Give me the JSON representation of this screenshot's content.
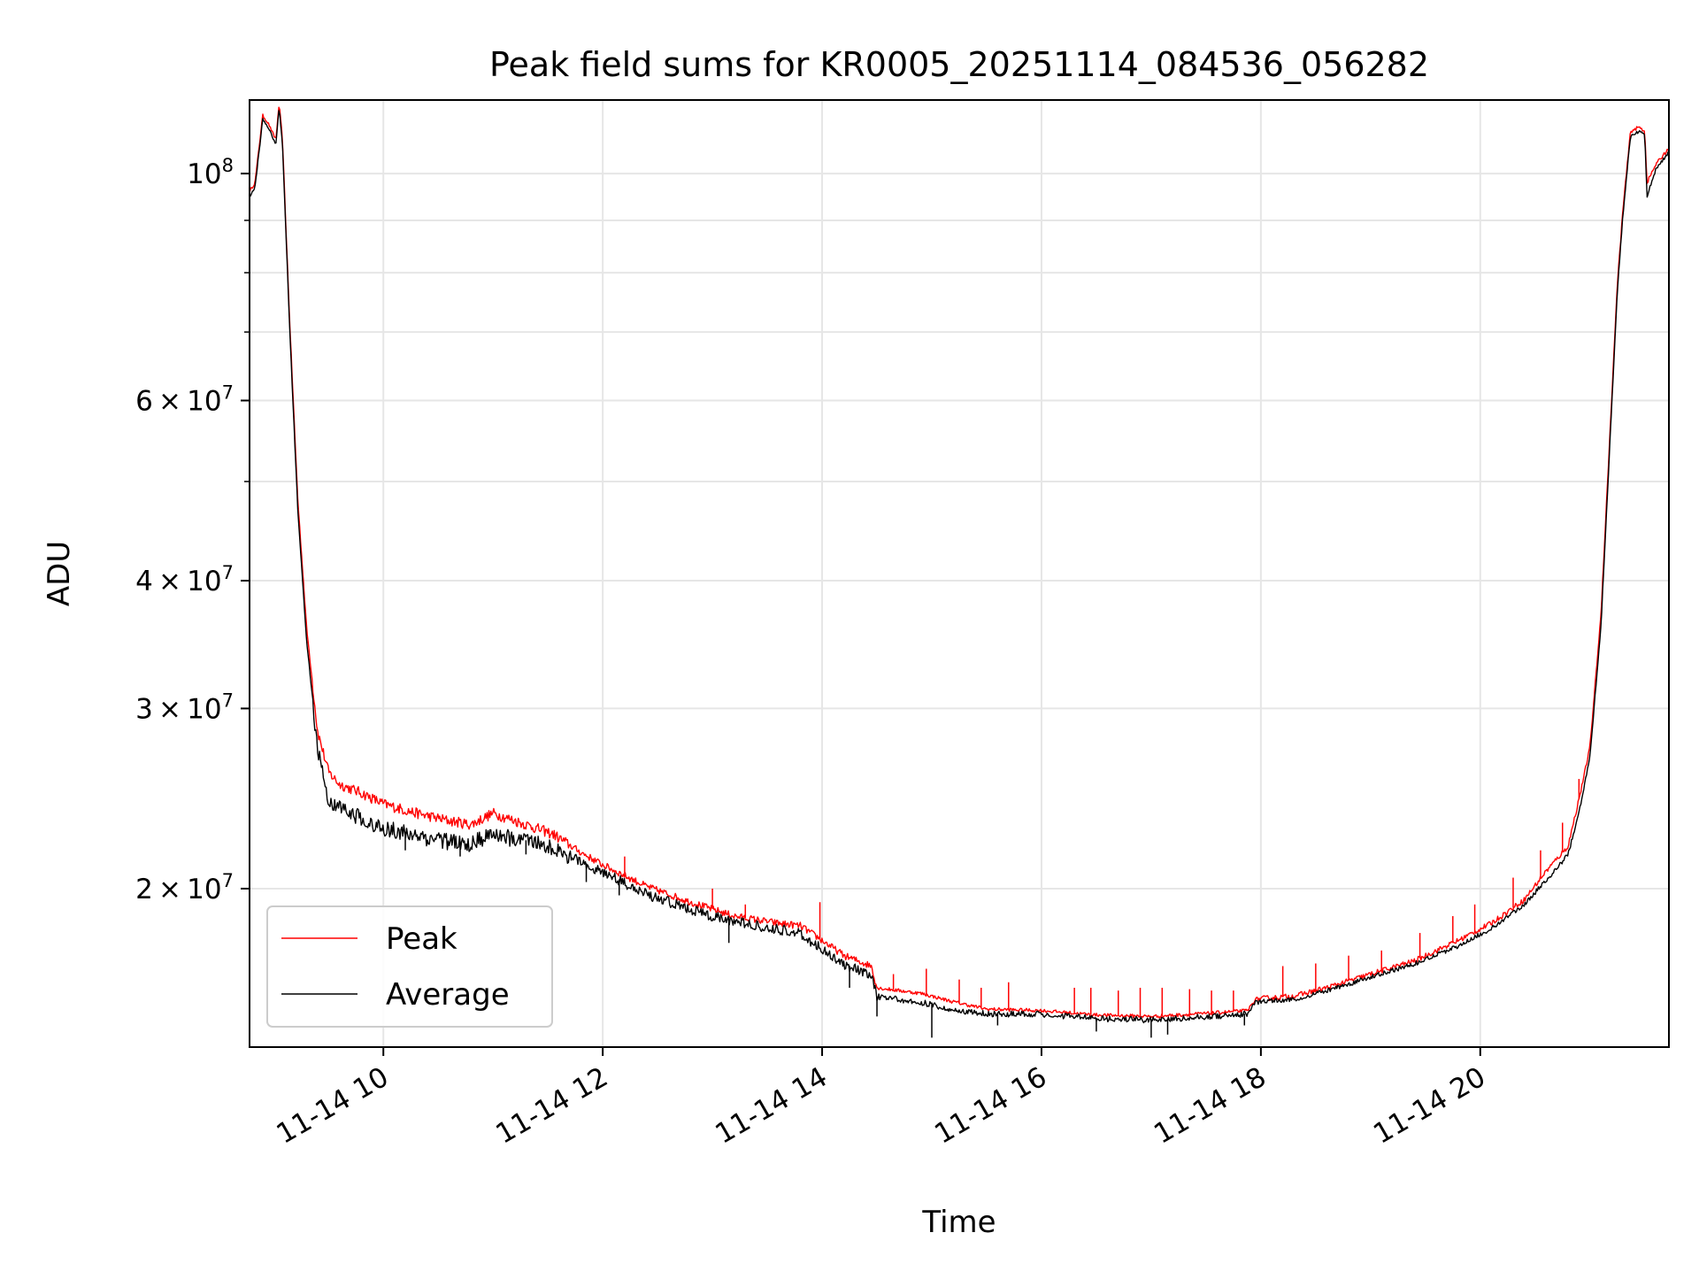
{
  "colors": {
    "peak": "#ff0000",
    "average": "#000000",
    "grid": "#e6e6e6",
    "axes": "#000000",
    "background": "#ffffff"
  },
  "chart_data": {
    "type": "line",
    "title": "Peak field sums for KR0005_20251114_084536_056282",
    "xlabel": "Time",
    "ylabel": "ADU",
    "yscale": "log",
    "grid": true,
    "legend_position": "bottom-left",
    "x_unit": "hours on 2025-11-14",
    "xlim": [
      8.78,
      21.72
    ],
    "ylim": [
      14000000,
      118000000
    ],
    "x_ticks": [
      {
        "value": 10,
        "label": "11-14 10"
      },
      {
        "value": 12,
        "label": "11-14 12"
      },
      {
        "value": 14,
        "label": "11-14 14"
      },
      {
        "value": 16,
        "label": "11-14 16"
      },
      {
        "value": 18,
        "label": "11-14 18"
      },
      {
        "value": 20,
        "label": "11-14 20"
      }
    ],
    "y_major_ticks": [
      {
        "value": 20000000,
        "mant": "2",
        "exp": "7"
      },
      {
        "value": 30000000,
        "mant": "3",
        "exp": "7"
      },
      {
        "value": 40000000,
        "mant": "4",
        "exp": "7"
      },
      {
        "value": 60000000,
        "mant": "6",
        "exp": "7"
      },
      {
        "value": 100000000,
        "mant": "",
        "exp": "8"
      }
    ],
    "y_minor_ticks": [
      50000000,
      70000000,
      80000000,
      90000000
    ],
    "series": [
      {
        "name": "Peak",
        "color": "#ff0000",
        "points": [
          [
            8.78,
            96000000
          ],
          [
            8.83,
            98000000
          ],
          [
            8.9,
            114000000
          ],
          [
            8.95,
            112000000
          ],
          [
            9.0,
            109000000
          ],
          [
            9.02,
            108000000
          ],
          [
            9.05,
            117000000
          ],
          [
            9.08,
            108000000
          ],
          [
            9.15,
            70000000
          ],
          [
            9.22,
            48000000
          ],
          [
            9.3,
            36000000
          ],
          [
            9.4,
            28500000
          ],
          [
            9.5,
            26000000
          ],
          [
            9.6,
            25300000
          ],
          [
            9.8,
            24800000
          ],
          [
            10.0,
            24200000
          ],
          [
            10.3,
            23700000
          ],
          [
            10.6,
            23300000
          ],
          [
            10.8,
            23100000
          ],
          [
            11.0,
            23700000
          ],
          [
            11.3,
            23100000
          ],
          [
            11.55,
            22600000
          ],
          [
            11.8,
            21700000
          ],
          [
            12.0,
            21100000
          ],
          [
            12.4,
            20100000
          ],
          [
            12.8,
            19400000
          ],
          [
            13.2,
            18800000
          ],
          [
            13.6,
            18500000
          ],
          [
            13.8,
            18400000
          ],
          [
            14.0,
            17800000
          ],
          [
            14.2,
            17200000
          ],
          [
            14.45,
            16800000
          ],
          [
            14.5,
            16000000
          ],
          [
            14.9,
            15800000
          ],
          [
            15.2,
            15500000
          ],
          [
            15.5,
            15250000
          ],
          [
            16.0,
            15200000
          ],
          [
            16.5,
            15050000
          ],
          [
            17.0,
            15000000
          ],
          [
            17.5,
            15100000
          ],
          [
            17.88,
            15200000
          ],
          [
            17.95,
            15600000
          ],
          [
            18.3,
            15700000
          ],
          [
            18.6,
            16000000
          ],
          [
            19.0,
            16500000
          ],
          [
            19.4,
            17000000
          ],
          [
            19.8,
            17800000
          ],
          [
            20.1,
            18500000
          ],
          [
            20.4,
            19500000
          ],
          [
            20.6,
            20800000
          ],
          [
            20.8,
            22000000
          ],
          [
            20.92,
            25000000
          ],
          [
            21.0,
            27500000
          ],
          [
            21.1,
            37000000
          ],
          [
            21.18,
            55000000
          ],
          [
            21.25,
            78000000
          ],
          [
            21.3,
            92000000
          ],
          [
            21.37,
            110000000
          ],
          [
            21.45,
            111000000
          ],
          [
            21.5,
            110000000
          ],
          [
            21.52,
            98000000
          ],
          [
            21.6,
            102000000
          ],
          [
            21.72,
            106000000
          ]
        ],
        "spikes": [
          [
            12.2,
            21500000
          ],
          [
            13.0,
            20000000
          ],
          [
            13.3,
            19300000
          ],
          [
            13.98,
            19400000
          ],
          [
            14.42,
            16800000
          ],
          [
            14.65,
            16500000
          ],
          [
            14.95,
            16700000
          ],
          [
            15.25,
            16300000
          ],
          [
            15.45,
            16000000
          ],
          [
            15.7,
            16200000
          ],
          [
            16.3,
            16000000
          ],
          [
            16.45,
            16000000
          ],
          [
            16.7,
            15900000
          ],
          [
            16.9,
            16000000
          ],
          [
            17.1,
            16000000
          ],
          [
            17.35,
            15950000
          ],
          [
            17.55,
            15900000
          ],
          [
            17.75,
            15900000
          ],
          [
            18.2,
            16800000
          ],
          [
            18.5,
            16900000
          ],
          [
            18.8,
            17200000
          ],
          [
            19.1,
            17400000
          ],
          [
            19.45,
            18100000
          ],
          [
            19.75,
            18800000
          ],
          [
            19.95,
            19300000
          ],
          [
            20.3,
            20500000
          ],
          [
            20.55,
            21800000
          ],
          [
            20.75,
            23200000
          ],
          [
            20.9,
            25600000
          ]
        ]
      },
      {
        "name": "Average",
        "color": "#000000",
        "points": [
          [
            8.78,
            95000000
          ],
          [
            8.83,
            97000000
          ],
          [
            8.9,
            113000000
          ],
          [
            8.95,
            111000000
          ],
          [
            9.0,
            108000000
          ],
          [
            9.02,
            107000000
          ],
          [
            9.05,
            116000000
          ],
          [
            9.08,
            107000000
          ],
          [
            9.15,
            69000000
          ],
          [
            9.22,
            47000000
          ],
          [
            9.3,
            35000000
          ],
          [
            9.4,
            27500000
          ],
          [
            9.5,
            24500000
          ],
          [
            9.6,
            24000000
          ],
          [
            9.8,
            23500000
          ],
          [
            10.0,
            23000000
          ],
          [
            10.3,
            22600000
          ],
          [
            10.6,
            22300000
          ],
          [
            10.8,
            22200000
          ],
          [
            11.0,
            22700000
          ],
          [
            11.3,
            22300000
          ],
          [
            11.55,
            22000000
          ],
          [
            11.8,
            21300000
          ],
          [
            12.0,
            20800000
          ],
          [
            12.4,
            19800000
          ],
          [
            12.8,
            19100000
          ],
          [
            13.2,
            18600000
          ],
          [
            13.6,
            18300000
          ],
          [
            13.8,
            18100000
          ],
          [
            14.0,
            17500000
          ],
          [
            14.2,
            16900000
          ],
          [
            14.45,
            16500000
          ],
          [
            14.5,
            15700000
          ],
          [
            14.9,
            15500000
          ],
          [
            15.2,
            15250000
          ],
          [
            15.5,
            15100000
          ],
          [
            16.0,
            15100000
          ],
          [
            16.5,
            14950000
          ],
          [
            17.0,
            14900000
          ],
          [
            17.5,
            15000000
          ],
          [
            17.88,
            15100000
          ],
          [
            17.95,
            15500000
          ],
          [
            18.3,
            15600000
          ],
          [
            18.6,
            15900000
          ],
          [
            19.0,
            16400000
          ],
          [
            19.4,
            16900000
          ],
          [
            19.8,
            17600000
          ],
          [
            20.1,
            18300000
          ],
          [
            20.4,
            19300000
          ],
          [
            20.6,
            20400000
          ],
          [
            20.8,
            21600000
          ],
          [
            20.92,
            24300000
          ],
          [
            21.0,
            27000000
          ],
          [
            21.1,
            36000000
          ],
          [
            21.18,
            54000000
          ],
          [
            21.25,
            77000000
          ],
          [
            21.3,
            91000000
          ],
          [
            21.37,
            109000000
          ],
          [
            21.45,
            110000000
          ],
          [
            21.5,
            109000000
          ],
          [
            21.52,
            95000000
          ],
          [
            21.6,
            101000000
          ],
          [
            21.72,
            105000000
          ]
        ],
        "dips": [
          [
            10.2,
            21800000
          ],
          [
            10.7,
            21500000
          ],
          [
            11.3,
            21600000
          ],
          [
            11.85,
            20300000
          ],
          [
            12.15,
            19700000
          ],
          [
            13.15,
            17700000
          ],
          [
            14.25,
            16000000
          ],
          [
            14.5,
            15000000
          ],
          [
            15.0,
            14300000
          ],
          [
            15.6,
            14700000
          ],
          [
            16.5,
            14500000
          ],
          [
            17.0,
            14300000
          ],
          [
            17.15,
            14400000
          ],
          [
            17.85,
            14700000
          ]
        ]
      }
    ]
  }
}
